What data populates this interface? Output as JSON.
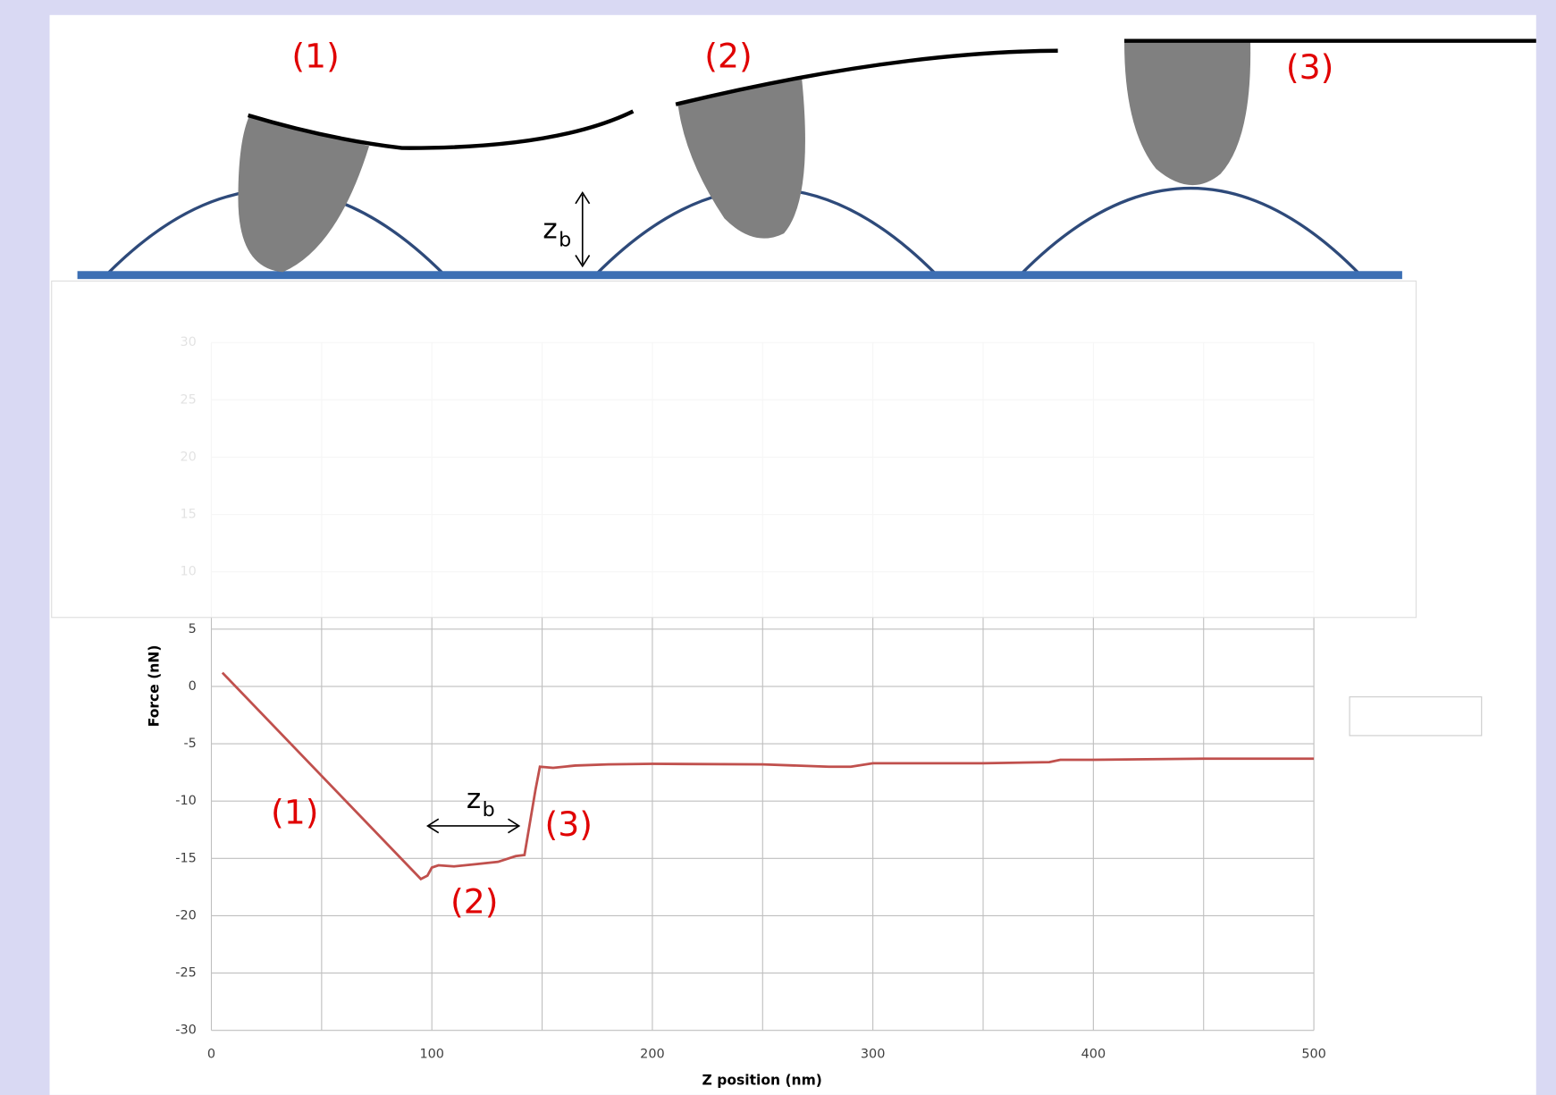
{
  "diagram": {
    "labels": [
      "(1)",
      "(2)",
      "(3)"
    ],
    "zb_main": "z",
    "zb_sub": "b"
  },
  "chart_data": {
    "type": "line",
    "x": [
      5,
      95,
      98,
      100,
      103,
      110,
      120,
      130,
      138,
      142,
      147,
      149,
      155,
      165,
      180,
      200,
      250,
      280,
      290,
      300,
      350,
      380,
      385,
      400,
      450,
      500
    ],
    "values": [
      1.2,
      -16.8,
      -16.5,
      -15.8,
      -15.6,
      -15.7,
      -15.5,
      -15.3,
      -14.8,
      -14.7,
      -9,
      -7,
      -7.1,
      -6.9,
      -6.8,
      -6.75,
      -6.8,
      -7,
      -7,
      -6.7,
      -6.7,
      -6.6,
      -6.4,
      -6.4,
      -6.3,
      -6.3
    ],
    "color": "#c0504d",
    "xlim": [
      0,
      500
    ],
    "ylim": [
      -30,
      30
    ],
    "xticks": [
      0,
      100,
      200,
      300,
      400,
      500
    ],
    "x_minor_gridlines": [
      50,
      150,
      250,
      350,
      450
    ],
    "yticks": [
      -30,
      -25,
      -20,
      -15,
      -10,
      -5,
      0,
      5,
      10,
      15,
      20,
      25,
      30
    ],
    "grid": true,
    "x_label": "Z position (nm)",
    "y_label": "Force (nN)",
    "annotations": [
      "(1)",
      "(2)",
      "(3)"
    ],
    "zb_main": "z",
    "zb_sub": "b"
  }
}
